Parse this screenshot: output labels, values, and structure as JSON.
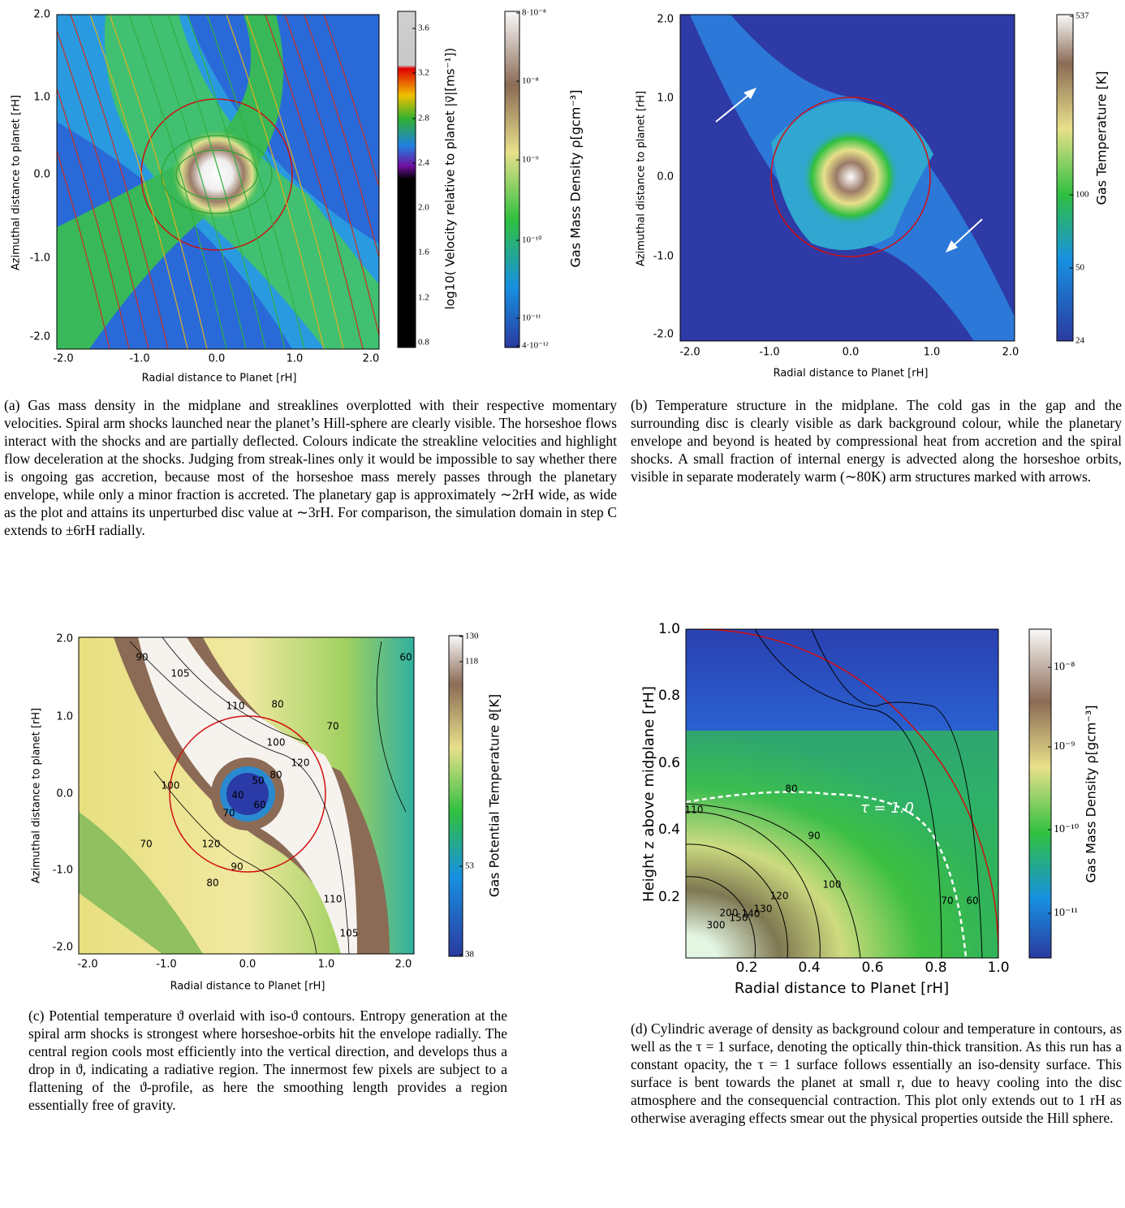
{
  "panels": [
    {
      "xlabel": "Radial distance to Planet [rH]",
      "ylabel": "Azimuthal distance to planet [rH]",
      "xticks": [
        "-2.0",
        "-1.0",
        "0.0",
        "1.0",
        "2.0"
      ],
      "yticks": [
        "2.0",
        "1.0",
        "0.0",
        "-1.0",
        "-2.0"
      ],
      "colorbars": [
        {
          "label": "log10( Velocity relative to planet |v⃗|[ms⁻¹])",
          "ticks": [
            "3.6",
            "3.2",
            "2.8",
            "2.4",
            "2.0",
            "1.6",
            "1.2",
            "0.8"
          ]
        },
        {
          "label": "Gas Mass Density ρ[gcm⁻³]",
          "ticks": [
            "8·10⁻⁸",
            "10⁻⁸",
            "10⁻⁹",
            "10⁻¹⁰",
            "10⁻¹¹",
            "4·10⁻¹²"
          ]
        }
      ],
      "caption": "(a) Gas mass density in the midplane and streaklines overplotted with their respective momentary velocities. Spiral arm shocks launched near the planet’s Hill-sphere are clearly visible. The horseshoe flows interact with the shocks and are partially deflected. Colours indicate the streakline velocities and highlight flow deceleration at the shocks. Judging from streak-lines only it would be impossible to say whether there is ongoing gas accretion, because most of the horseshoe mass merely passes through the planetary envelope, while only a minor fraction is accreted. The planetary gap is approximately ∼2rH wide, as wide as the plot and attains its unperturbed disc value at ∼3rH. For comparison, the simulation domain in step C extends to ±6rH radially."
    },
    {
      "xlabel": "Radial distance to Planet [rH]",
      "ylabel": "Azimuthal distance to planet [rH]",
      "xticks": [
        "-2.0",
        "-1.0",
        "0.0",
        "1.0",
        "2.0"
      ],
      "yticks": [
        "2.0",
        "1.0",
        "0.0",
        "-1.0",
        "-2.0"
      ],
      "colorbars": [
        {
          "label": "Gas Temperature [K]",
          "ticks": [
            "537",
            "100",
            "50",
            "24"
          ]
        }
      ],
      "caption": "(b) Temperature structure in the midplane. The cold gas in the gap and the surrounding disc is clearly visible as dark background colour, while the planetary envelope and beyond is heated by compressional heat from accretion and the spiral shocks. A small fraction of internal energy is advected along the horseshoe orbits, visible in separate moderately warm (∼80K) arm structures marked with arrows."
    },
    {
      "xlabel": "Radial distance to Planet [rH]",
      "ylabel": "Azimuthal distance to planet [rH]",
      "xticks": [
        "-2.0",
        "-1.0",
        "0.0",
        "1.0",
        "2.0"
      ],
      "yticks": [
        "2.0",
        "1.0",
        "0.0",
        "-1.0",
        "-2.0"
      ],
      "colorbars": [
        {
          "label": "Gas Potential Temperature ϑ[K]",
          "ticks": [
            "130",
            "118",
            "53",
            "38"
          ]
        }
      ],
      "contour_labels": [
        "90",
        "105",
        "110",
        "80",
        "70",
        "60",
        "100",
        "120",
        "80",
        "50",
        "40",
        "60",
        "70",
        "100",
        "70",
        "120",
        "90",
        "80",
        "110",
        "105"
      ],
      "caption": "(c) Potential temperature ϑ overlaid with iso-ϑ contours. Entropy generation at the spiral arm shocks is strongest where horseshoe-orbits hit the envelope radially. The central region cools most efficiently into the vertical direction, and develops thus a drop in ϑ, indicating a radiative region. The innermost few pixels are subject to a flattening of the ϑ-profile, as here the smoothing length provides a region essentially free of gravity."
    },
    {
      "xlabel": "Radial distance to Planet [rH]",
      "ylabel": "Height z above midplane [rH]",
      "xticks": [
        "0.2",
        "0.4",
        "0.6",
        "0.8",
        "1.0"
      ],
      "yticks": [
        "1.0",
        "0.8",
        "0.6",
        "0.4",
        "0.2"
      ],
      "colorbars": [
        {
          "label": "Gas Mass Density ρ[gcm⁻³]",
          "ticks": [
            "10⁻⁸",
            "10⁻⁹",
            "10⁻¹⁰",
            "10⁻¹¹"
          ]
        }
      ],
      "contour_labels": [
        "110",
        "80",
        "τ = 1.0",
        "90",
        "100",
        "120",
        "130",
        "140",
        "150",
        "200",
        "300",
        "70",
        "60"
      ],
      "caption": "(d) Cylindric average of density as background colour and temperature in contours, as well as the τ = 1 surface, denoting the optically thin-thick transition. As this run has a constant opacity, the τ = 1 surface follows essentially an iso-density surface. This surface is bent towards the planet at small r, due to heavy cooling into the disc atmosphere and the consequencial contraction. This plot only extends out to 1 rH as otherwise averaging effects smear out the physical properties outside the Hill sphere."
    }
  ]
}
